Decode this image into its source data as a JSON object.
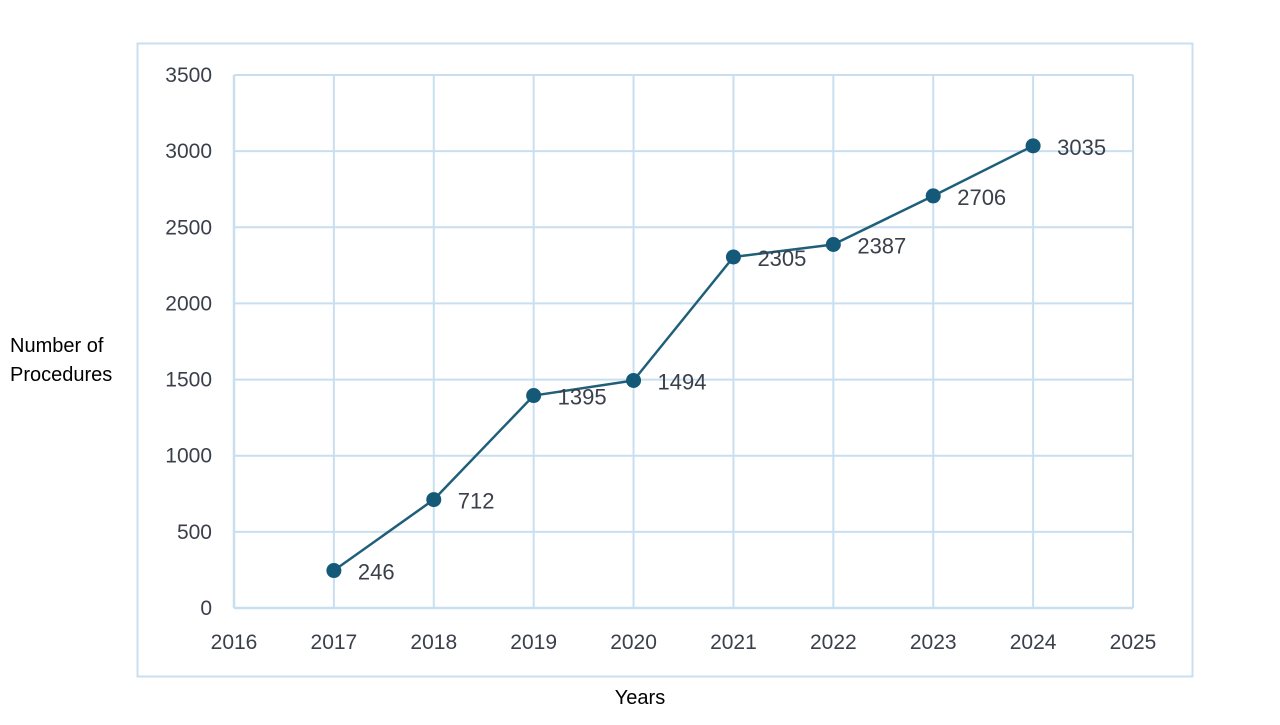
{
  "chart_data": {
    "type": "line",
    "title": "",
    "xlabel": "Years",
    "ylabel": "Number of\nProcedures",
    "x": [
      2017,
      2018,
      2019,
      2020,
      2021,
      2022,
      2023,
      2024
    ],
    "series": [
      {
        "values": [
          246,
          712,
          1395,
          1494,
          2305,
          2387,
          2706,
          3035
        ]
      }
    ],
    "data_labels": [
      "246",
      "712",
      "1395",
      "1494",
      "2305",
      "2387",
      "2706",
      "3035"
    ],
    "xlim": [
      2016,
      2025
    ],
    "ylim": [
      0,
      3500
    ],
    "x_ticks": [
      2016,
      2017,
      2018,
      2019,
      2020,
      2021,
      2022,
      2023,
      2024,
      2025
    ],
    "y_ticks": [
      0,
      500,
      1000,
      1500,
      2000,
      2500,
      3000,
      3500
    ],
    "grid": true,
    "legend": "none"
  },
  "colors": {
    "line": "#1f5f7a",
    "marker": "#145a78",
    "grid": "#c9dff0",
    "frame": "#c9dff0",
    "tick_text": "#3a3f4a",
    "label_text": "#000000"
  }
}
